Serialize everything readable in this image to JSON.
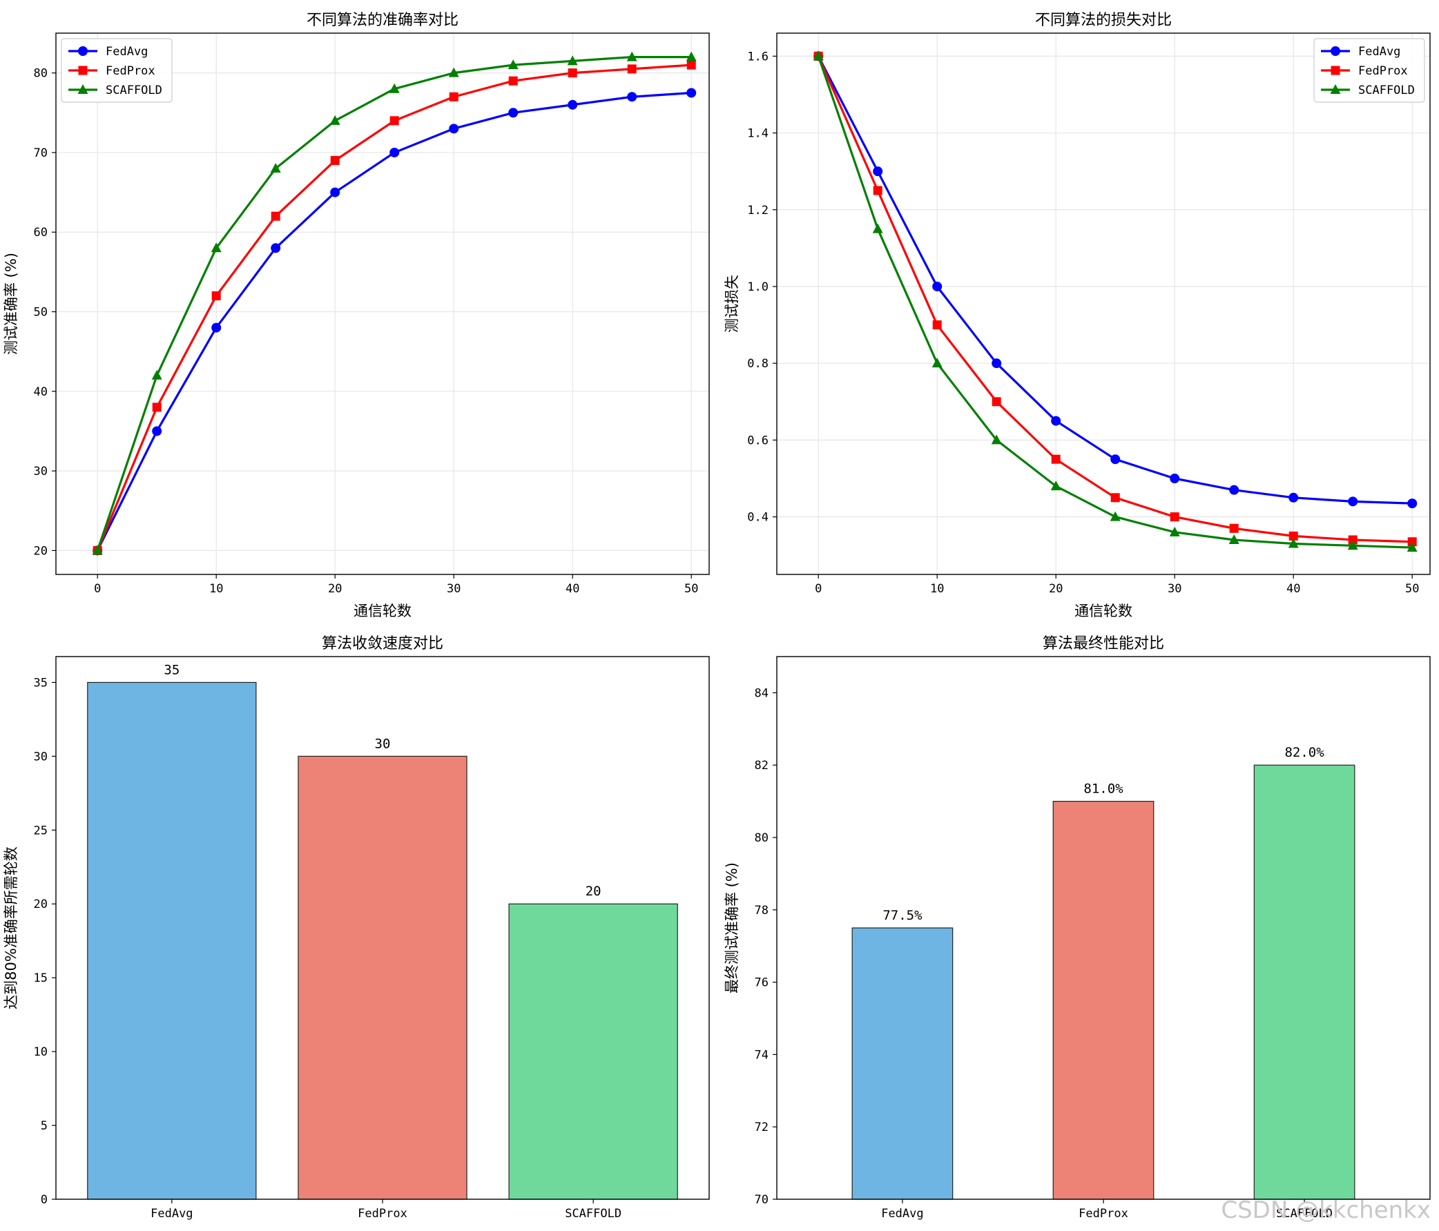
{
  "chart_data": [
    {
      "type": "line",
      "title": "不同算法的准确率对比",
      "xlabel": "通信轮数",
      "ylabel": "测试准确率 (%)",
      "x": [
        0,
        5,
        10,
        15,
        20,
        25,
        30,
        35,
        40,
        45,
        50
      ],
      "xlim": [
        -3.5,
        51.5
      ],
      "ylim": [
        17,
        85
      ],
      "xticks": [
        0,
        10,
        20,
        30,
        40,
        50
      ],
      "yticks": [
        20,
        30,
        40,
        50,
        60,
        70,
        80
      ],
      "grid": true,
      "legend": "top-left",
      "series": [
        {
          "name": "FedAvg",
          "color": "#0000ff",
          "marker": "circle",
          "values": [
            20,
            35,
            48,
            58,
            65,
            70,
            73,
            75,
            76,
            77,
            77.5
          ]
        },
        {
          "name": "FedProx",
          "color": "#ff0000",
          "marker": "square",
          "values": [
            20,
            38,
            52,
            62,
            69,
            74,
            77,
            79,
            80,
            80.5,
            81
          ]
        },
        {
          "name": "SCAFFOLD",
          "color": "#008000",
          "marker": "triangle",
          "values": [
            20,
            42,
            58,
            68,
            74,
            78,
            80,
            81,
            81.5,
            82,
            82
          ]
        }
      ]
    },
    {
      "type": "line",
      "title": "不同算法的损失对比",
      "xlabel": "通信轮数",
      "ylabel": "测试损失",
      "x": [
        0,
        5,
        10,
        15,
        20,
        25,
        30,
        35,
        40,
        45,
        50
      ],
      "xlim": [
        -3.5,
        51.5
      ],
      "ylim": [
        0.25,
        1.66
      ],
      "xticks": [
        0,
        10,
        20,
        30,
        40,
        50
      ],
      "yticks": [
        0.4,
        0.6,
        0.8,
        1.0,
        1.2,
        1.4,
        1.6
      ],
      "ytick_decimals": 1,
      "grid": true,
      "legend": "top-right",
      "series": [
        {
          "name": "FedAvg",
          "color": "#0000ff",
          "marker": "circle",
          "values": [
            1.6,
            1.3,
            1.0,
            0.8,
            0.65,
            0.55,
            0.5,
            0.47,
            0.45,
            0.44,
            0.435
          ]
        },
        {
          "name": "FedProx",
          "color": "#ff0000",
          "marker": "square",
          "values": [
            1.6,
            1.25,
            0.9,
            0.7,
            0.55,
            0.45,
            0.4,
            0.37,
            0.35,
            0.34,
            0.335
          ]
        },
        {
          "name": "SCAFFOLD",
          "color": "#008000",
          "marker": "triangle",
          "values": [
            1.6,
            1.15,
            0.8,
            0.6,
            0.48,
            0.4,
            0.36,
            0.34,
            0.33,
            0.325,
            0.32
          ]
        }
      ]
    },
    {
      "type": "bar",
      "title": "算法收敛速度对比",
      "xlabel": "",
      "ylabel": "达到80%准确率所需轮数",
      "categories": [
        "FedAvg",
        "FedProx",
        "SCAFFOLD"
      ],
      "values": [
        35,
        30,
        20
      ],
      "data_labels": [
        "35",
        "30",
        "20"
      ],
      "colors": [
        "#6fb5e3",
        "#ed8376",
        "#6fd99b"
      ],
      "ylim": [
        0,
        36.75
      ],
      "yticks": [
        0,
        5,
        10,
        15,
        20,
        25,
        30,
        35
      ],
      "bar_width": 0.8,
      "grid": false
    },
    {
      "type": "bar",
      "title": "算法最终性能对比",
      "xlabel": "",
      "ylabel": "最终测试准确率 (%)",
      "categories": [
        "FedAvg",
        "FedProx",
        "SCAFFOLD"
      ],
      "values": [
        77.5,
        81.0,
        82.0
      ],
      "data_labels": [
        "77.5%",
        "81.0%",
        "82.0%"
      ],
      "colors": [
        "#6fb5e3",
        "#ed8376",
        "#6fd99b"
      ],
      "ylim": [
        70,
        85
      ],
      "yticks": [
        70,
        72,
        74,
        76,
        78,
        80,
        82,
        84
      ],
      "bar_width": 0.5,
      "grid": false
    }
  ],
  "watermark": "CSDN @kkchenkx"
}
